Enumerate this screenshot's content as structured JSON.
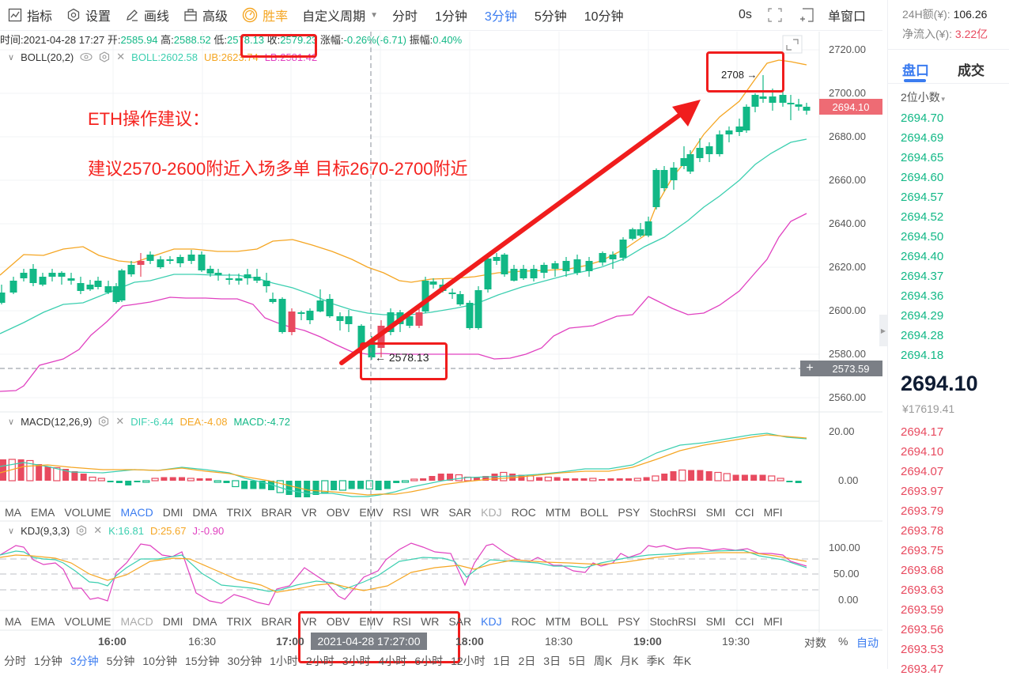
{
  "toolbar": {
    "indicator_label": "指标",
    "settings_label": "设置",
    "draw_label": "画线",
    "advanced_label": "高级",
    "winrate_label": "胜率",
    "custom_period_label": "自定义周期",
    "periods": [
      "分时",
      "1分钟",
      "3分钟",
      "5分钟",
      "10分钟"
    ],
    "active_period": "3分钟",
    "countdown": "0s",
    "single_window_label": "单窗口"
  },
  "info_bar": {
    "time_label": "时间:",
    "time": "2021-04-28 17:27",
    "open_label": "开:",
    "open": "2585.94",
    "high_label": "高:",
    "high": "2588.52",
    "low_label": "低:",
    "low": "2578.13",
    "close_label": "收:",
    "close": "2579.23",
    "change_label": "涨幅:",
    "change": "-0.26%(-6.71)",
    "amplitude_label": "振幅:",
    "amplitude": "0.40%"
  },
  "boll": {
    "name": "BOLL(20,2)",
    "mid": "BOLL:2602.58",
    "ub": "UB:2623.74",
    "lb": "LB:2581.42"
  },
  "price_axis": [
    "2720.00",
    "2700.00",
    "2680.00",
    "2660.00",
    "2640.00",
    "2620.00",
    "2600.00",
    "2580.00",
    "2560.00"
  ],
  "current_price_tag": "2694.10",
  "crosshair_price_tag": "2573.59",
  "annotations": {
    "title": "ETH操作建议：",
    "advice": "建议2570-2600附近入场多单 目标2670-2700附近",
    "high_mark": "2708 →",
    "low_mark": "← 2578.13"
  },
  "macd": {
    "name": "MACD(12,26,9)",
    "dif": "DIF:-6.44",
    "dea": "DEA:-4.08",
    "macd": "MACD:-4.72",
    "axis": [
      "20.00",
      "0.00"
    ]
  },
  "indicator_tabs_1": [
    "MA",
    "EMA",
    "VOLUME",
    "MACD",
    "DMI",
    "DMA",
    "TRIX",
    "BRAR",
    "VR",
    "OBV",
    "EMV",
    "RSI",
    "WR",
    "SAR",
    "KDJ",
    "ROC",
    "MTM",
    "BOLL",
    "PSY",
    "StochRSI",
    "SMI",
    "CCI",
    "MFI"
  ],
  "kdj": {
    "name": "KDJ(9,3,3)",
    "k": "K:16.81",
    "d": "D:25.67",
    "j": "J:-0.90",
    "axis": [
      "100.00",
      "50.00",
      "0.00"
    ]
  },
  "indicator_tabs_2": [
    "MA",
    "EMA",
    "VOLUME",
    "MACD",
    "DMI",
    "DMA",
    "TRIX",
    "BRAR",
    "VR",
    "OBV",
    "EMV",
    "RSI",
    "WR",
    "SAR",
    "KDJ",
    "ROC",
    "MTM",
    "BOLL",
    "PSY",
    "StochRSI",
    "SMI",
    "CCI",
    "MFI"
  ],
  "time_axis": [
    "16:00",
    "16:30",
    "17:00",
    "18:00",
    "18:30",
    "19:00",
    "19:30"
  ],
  "crosshair_time": "2021-04-28 17:27:00",
  "axis_options": {
    "log": "对数",
    "percent": "%",
    "auto": "自动"
  },
  "bottom_periods": [
    "分时",
    "1分钟",
    "3分钟",
    "5分钟",
    "10分钟",
    "15分钟",
    "30分钟",
    "1小时",
    "2小时",
    "3小时",
    "4小时",
    "6小时",
    "12小时",
    "1日",
    "2日",
    "3日",
    "5日",
    "周K",
    "月K",
    "季K",
    "年K"
  ],
  "right_panel": {
    "volume_24h_label": "24H额(¥):",
    "volume_24h": "106.26",
    "net_inflow_label": "净流入(¥):",
    "net_inflow": "3.22亿",
    "tab_orderbook": "盘口",
    "tab_trades": "成交",
    "decimals": "2位小数",
    "asks": [
      "2694.70",
      "2694.69",
      "2694.65",
      "2694.60",
      "2694.57",
      "2694.52",
      "2694.50",
      "2694.40",
      "2694.37",
      "2694.36",
      "2694.29",
      "2694.28",
      "2694.18"
    ],
    "last_price": "2694.10",
    "last_price_cny": "¥17619.41",
    "bids": [
      "2694.17",
      "2694.10",
      "2694.07",
      "2693.97",
      "2693.79",
      "2693.78",
      "2693.75",
      "2693.68",
      "2693.63",
      "2693.59",
      "2693.56",
      "2693.53",
      "2693.47"
    ]
  },
  "colors": {
    "up": "#e84a5f",
    "down": "#12b886",
    "accent": "#3b7cf0",
    "boll_mid": "#3ccfb0",
    "boll_ub": "#f5a623",
    "boll_lb": "#e040c0",
    "annotation": "#f5231f"
  }
}
